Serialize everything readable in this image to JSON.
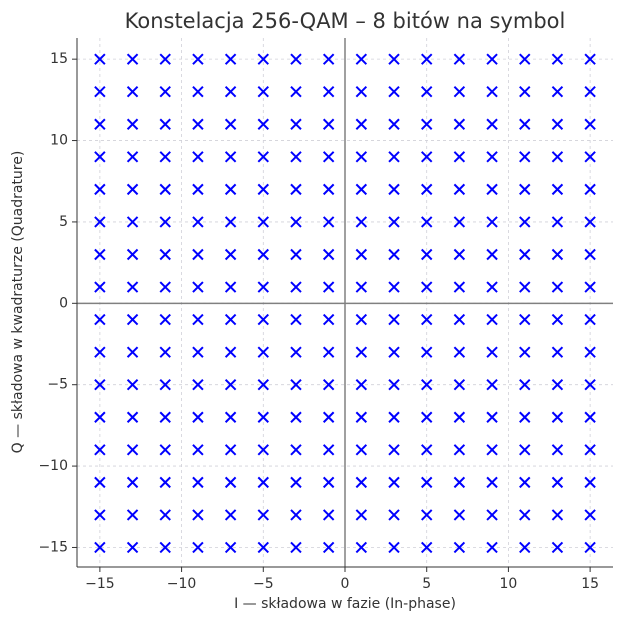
{
  "chart_data": {
    "type": "scatter",
    "title": "Konstelacja 256-QAM – 8 bitów na symbol",
    "x_label": "I — składowa w fazie (In-phase)",
    "y_label": "Q — składowa w kwadraturze (Quadrature)",
    "color": "#0000ff",
    "marker": "x",
    "grid": true,
    "x": [
      -15,
      -15,
      -15,
      -15,
      -15,
      -15,
      -15,
      -15,
      -15,
      -15,
      -15,
      -15,
      -15,
      -15,
      -15,
      -15,
      -13,
      -13,
      -13,
      -13,
      -13,
      -13,
      -13,
      -13,
      -13,
      -13,
      -13,
      -13,
      -13,
      -13,
      -13,
      -13,
      -11,
      -11,
      -11,
      -11,
      -11,
      -11,
      -11,
      -11,
      -11,
      -11,
      -11,
      -11,
      -11,
      -11,
      -11,
      -11,
      -9,
      -9,
      -9,
      -9,
      -9,
      -9,
      -9,
      -9,
      -9,
      -9,
      -9,
      -9,
      -9,
      -9,
      -9,
      -9,
      -7,
      -7,
      -7,
      -7,
      -7,
      -7,
      -7,
      -7,
      -7,
      -7,
      -7,
      -7,
      -7,
      -7,
      -7,
      -7,
      -5,
      -5,
      -5,
      -5,
      -5,
      -5,
      -5,
      -5,
      -5,
      -5,
      -5,
      -5,
      -5,
      -5,
      -5,
      -5,
      -3,
      -3,
      -3,
      -3,
      -3,
      -3,
      -3,
      -3,
      -3,
      -3,
      -3,
      -3,
      -3,
      -3,
      -3,
      -3,
      -1,
      -1,
      -1,
      -1,
      -1,
      -1,
      -1,
      -1,
      -1,
      -1,
      -1,
      -1,
      -1,
      -1,
      -1,
      -1,
      1,
      1,
      1,
      1,
      1,
      1,
      1,
      1,
      1,
      1,
      1,
      1,
      1,
      1,
      1,
      1,
      3,
      3,
      3,
      3,
      3,
      3,
      3,
      3,
      3,
      3,
      3,
      3,
      3,
      3,
      3,
      3,
      5,
      5,
      5,
      5,
      5,
      5,
      5,
      5,
      5,
      5,
      5,
      5,
      5,
      5,
      5,
      5,
      7,
      7,
      7,
      7,
      7,
      7,
      7,
      7,
      7,
      7,
      7,
      7,
      7,
      7,
      7,
      7,
      9,
      9,
      9,
      9,
      9,
      9,
      9,
      9,
      9,
      9,
      9,
      9,
      9,
      9,
      9,
      9,
      11,
      11,
      11,
      11,
      11,
      11,
      11,
      11,
      11,
      11,
      11,
      11,
      11,
      11,
      11,
      11,
      13,
      13,
      13,
      13,
      13,
      13,
      13,
      13,
      13,
      13,
      13,
      13,
      13,
      13,
      13,
      13,
      15,
      15,
      15,
      15,
      15,
      15,
      15,
      15,
      15,
      15,
      15,
      15,
      15,
      15,
      15,
      15
    ],
    "values": [
      -15,
      -13,
      -11,
      -9,
      -7,
      -5,
      -3,
      -1,
      1,
      3,
      5,
      7,
      9,
      11,
      13,
      15,
      -15,
      -13,
      -11,
      -9,
      -7,
      -5,
      -3,
      -1,
      1,
      3,
      5,
      7,
      9,
      11,
      13,
      15,
      -15,
      -13,
      -11,
      -9,
      -7,
      -5,
      -3,
      -1,
      1,
      3,
      5,
      7,
      9,
      11,
      13,
      15,
      -15,
      -13,
      -11,
      -9,
      -7,
      -5,
      -3,
      -1,
      1,
      3,
      5,
      7,
      9,
      11,
      13,
      15,
      -15,
      -13,
      -11,
      -9,
      -7,
      -5,
      -3,
      -1,
      1,
      3,
      5,
      7,
      9,
      11,
      13,
      15,
      -15,
      -13,
      -11,
      -9,
      -7,
      -5,
      -3,
      -1,
      1,
      3,
      5,
      7,
      9,
      11,
      13,
      15,
      -15,
      -13,
      -11,
      -9,
      -7,
      -5,
      -3,
      -1,
      1,
      3,
      5,
      7,
      9,
      11,
      13,
      15,
      -15,
      -13,
      -11,
      -9,
      -7,
      -5,
      -3,
      -1,
      1,
      3,
      5,
      7,
      9,
      11,
      13,
      15,
      -15,
      -13,
      -11,
      -9,
      -7,
      -5,
      -3,
      -1,
      1,
      3,
      5,
      7,
      9,
      11,
      13,
      15,
      -15,
      -13,
      -11,
      -9,
      -7,
      -5,
      -3,
      -1,
      1,
      3,
      5,
      7,
      9,
      11,
      13,
      15,
      -15,
      -13,
      -11,
      -9,
      -7,
      -5,
      -3,
      -1,
      1,
      3,
      5,
      7,
      9,
      11,
      13,
      15,
      -15,
      -13,
      -11,
      -9,
      -7,
      -5,
      -3,
      -1,
      1,
      3,
      5,
      7,
      9,
      11,
      13,
      15,
      -15,
      -13,
      -11,
      -9,
      -7,
      -5,
      -3,
      -1,
      1,
      3,
      5,
      7,
      9,
      11,
      13,
      15,
      -15,
      -13,
      -11,
      -9,
      -7,
      -5,
      -3,
      -1,
      1,
      3,
      5,
      7,
      9,
      11,
      13,
      15,
      -15,
      -13,
      -11,
      -9,
      -7,
      -5,
      -3,
      -1,
      1,
      3,
      5,
      7,
      9,
      11,
      13,
      15,
      -15,
      -13,
      -11,
      -9,
      -7,
      -5,
      -3,
      -1,
      1,
      3,
      5,
      7,
      9,
      11,
      13,
      15
    ],
    "xlim": [
      -16.4,
      16.4
    ],
    "ylim": [
      -16.2,
      16.3
    ],
    "xticks": [
      {
        "value": -15,
        "label": "−15"
      },
      {
        "value": -10,
        "label": "−10"
      },
      {
        "value": -5,
        "label": "−5"
      },
      0,
      5,
      10,
      15
    ],
    "yticks": [
      {
        "value": -15,
        "label": "−15"
      },
      {
        "value": -10,
        "label": "−10"
      },
      {
        "value": -5,
        "label": "−5"
      },
      0,
      5,
      10,
      15
    ]
  }
}
